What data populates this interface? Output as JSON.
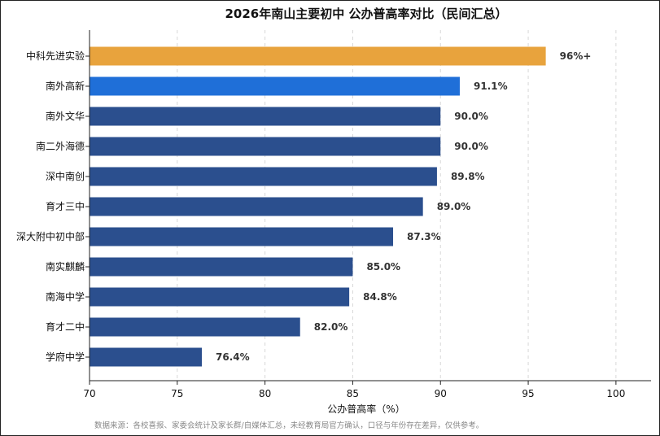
{
  "chart_data": {
    "type": "bar",
    "orientation": "horizontal",
    "title": "2026年南山主要初中 公办普高率对比（民间汇总）",
    "xlabel": "公办普高率（%）",
    "xlim": [
      70,
      102
    ],
    "xticks": [
      70,
      75,
      80,
      85,
      90,
      95,
      100
    ],
    "grid": "vertical-dashed",
    "categories": [
      "中科先进实验",
      "南外高新",
      "南外文华",
      "南二外海德",
      "深中南创",
      "育才三中",
      "深大附中初中部",
      "南实麒麟",
      "南海中学",
      "育才二中",
      "学府中学"
    ],
    "values": [
      96,
      91.1,
      90.0,
      90.0,
      89.8,
      89.0,
      87.3,
      85.0,
      84.8,
      82.0,
      76.4
    ],
    "labels": [
      "96%+",
      "91.1%",
      "90.0%",
      "90.0%",
      "89.8%",
      "89.0%",
      "87.3%",
      "85.0%",
      "84.8%",
      "82.0%",
      "76.4%"
    ],
    "colors": [
      "#e8a33d",
      "#1f6fd8",
      "#2b4f8e",
      "#2b4f8e",
      "#2b4f8e",
      "#2b4f8e",
      "#2b4f8e",
      "#2b4f8e",
      "#2b4f8e",
      "#2b4f8e",
      "#2b4f8e"
    ],
    "footnote": "数据来源：各校喜报、家委会统计及家长群/自媒体汇总，未经教育局官方确认，口径与年份存在差异，仅供参考。"
  }
}
